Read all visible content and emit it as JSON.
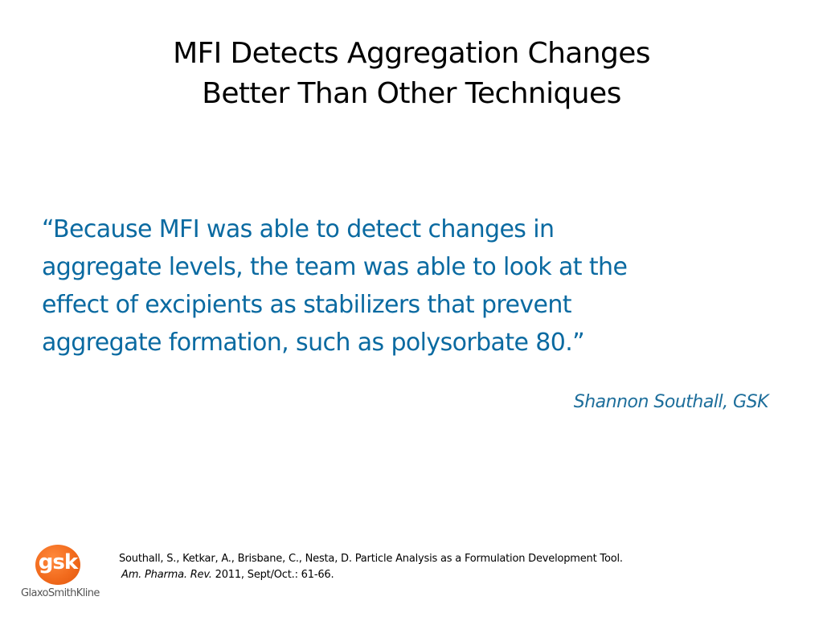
{
  "slide": {
    "title_lines": [
      "MFI Detects Aggregation Changes",
      "Better Than Other Techniques"
    ],
    "quote_lines": [
      "“Because MFI was able to detect changes in",
      "aggregate levels, the team was able to look at the",
      "effect of excipients as stabilizers that prevent",
      "aggregate formation, such as polysorbate 80.”"
    ],
    "attribution": "Shannon Southall, GSK",
    "reference": {
      "line1": "Southall, S., Ketkar, A., Brisbane, C., Nesta, D. Particle Analysis as a Formulation Development Tool.",
      "journal": "Am. Pharma. Rev.",
      "details": " 2011, Sept/Oct.: 61-66."
    },
    "logo": {
      "mark": "gsk",
      "name": "GlaxoSmithKline"
    }
  },
  "colors": {
    "quote": "#0a6aa1",
    "attribution": "#1d6e9b",
    "logo_orange": "#f26b1d"
  }
}
